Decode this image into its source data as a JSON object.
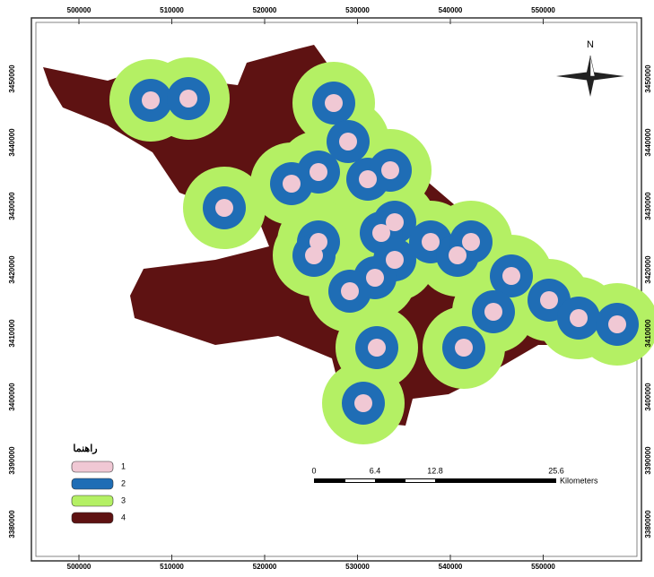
{
  "map": {
    "x_labels": [
      500000,
      510000,
      520000,
      530000,
      540000,
      550000
    ],
    "y_labels": [
      3450000,
      3440000,
      3430000,
      3420000,
      3410000,
      3400000,
      3390000,
      3380000
    ],
    "north": "N",
    "legend": {
      "title": "راهنما",
      "items": [
        {
          "label": "1",
          "color": "#f0c8d4"
        },
        {
          "label": "2",
          "color": "#1f6db5"
        },
        {
          "label": "3",
          "color": "#b4f064"
        },
        {
          "label": "4",
          "color": "#5e1212"
        }
      ]
    },
    "scale_bar": {
      "labels": [
        "0",
        "6.4",
        "12.8",
        "25.6"
      ],
      "unit": "Kilometers"
    }
  }
}
